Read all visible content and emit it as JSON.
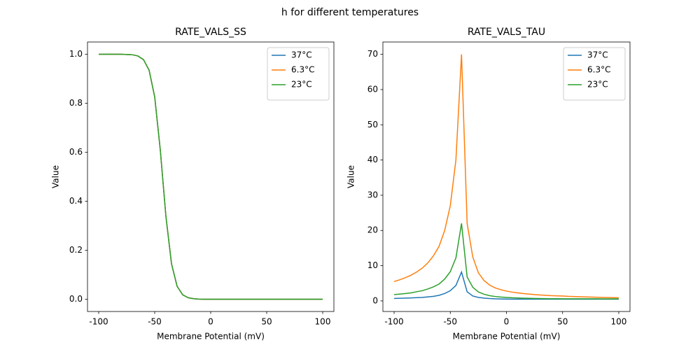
{
  "title": "h for different temperatures",
  "chart_data": [
    {
      "type": "line",
      "title": "RATE_VALS_SS",
      "xlabel": "Membrane Potential (mV)",
      "ylabel": "Value",
      "x": [
        -100,
        -95,
        -90,
        -85,
        -80,
        -75,
        -70,
        -65,
        -60,
        -55,
        -50,
        -45,
        -40,
        -35,
        -30,
        -25,
        -20,
        -15,
        -10,
        -5,
        0,
        5,
        10,
        15,
        20,
        25,
        30,
        35,
        40,
        45,
        50,
        55,
        60,
        65,
        70,
        75,
        80,
        85,
        90,
        95,
        100
      ],
      "series": [
        {
          "name": "37°C",
          "color": "#1f77b4",
          "values": [
            1,
            1,
            1,
            1,
            1,
            0.999,
            0.998,
            0.993,
            0.978,
            0.935,
            0.826,
            0.609,
            0.339,
            0.145,
            0.053,
            0.018,
            0.006,
            0.002,
            0.0003,
            0,
            0,
            0,
            0,
            0,
            0,
            0,
            0,
            0,
            0,
            0,
            0,
            0,
            0,
            0,
            0,
            0,
            0,
            0,
            0,
            0,
            0
          ]
        },
        {
          "name": "6.3°C",
          "color": "#ff7f0e",
          "values": [
            1,
            1,
            1,
            1,
            1,
            0.999,
            0.998,
            0.993,
            0.978,
            0.935,
            0.826,
            0.609,
            0.339,
            0.145,
            0.053,
            0.018,
            0.006,
            0.002,
            0.0003,
            0,
            0,
            0,
            0,
            0,
            0,
            0,
            0,
            0,
            0,
            0,
            0,
            0,
            0,
            0,
            0,
            0,
            0,
            0,
            0,
            0,
            0
          ]
        },
        {
          "name": "23°C",
          "color": "#2ca02c",
          "values": [
            1,
            1,
            1,
            1,
            1,
            0.999,
            0.998,
            0.993,
            0.978,
            0.935,
            0.826,
            0.609,
            0.339,
            0.145,
            0.053,
            0.018,
            0.006,
            0.002,
            0.0003,
            0,
            0,
            0,
            0,
            0,
            0,
            0,
            0,
            0,
            0,
            0,
            0,
            0,
            0,
            0,
            0,
            0,
            0,
            0,
            0,
            0,
            0
          ]
        }
      ],
      "xlim": [
        -110,
        110
      ],
      "xticks": [
        -100,
        -50,
        0,
        50,
        100
      ],
      "ylim": [
        -0.05,
        1.05
      ],
      "yticks": [
        {
          "value": 0,
          "label": "0.0"
        },
        0.2,
        0.4,
        0.6,
        0.8,
        {
          "value": 1,
          "label": "1.0"
        }
      ],
      "legend": "upper right"
    },
    {
      "type": "line",
      "title": "RATE_VALS_TAU",
      "xlabel": "Membrane Potential (mV)",
      "ylabel": "Value",
      "x": [
        -100,
        -95,
        -90,
        -85,
        -80,
        -75,
        -70,
        -65,
        -60,
        -55,
        -50,
        -45,
        -40,
        -35,
        -30,
        -25,
        -20,
        -15,
        -10,
        -5,
        0,
        5,
        10,
        15,
        20,
        25,
        30,
        35,
        40,
        45,
        50,
        55,
        60,
        65,
        70,
        75,
        80,
        85,
        90,
        95,
        100
      ],
      "series": [
        {
          "name": "37°C",
          "color": "#1f77b4",
          "values": [
            0.7,
            0.75,
            0.8,
            0.85,
            0.92,
            1.0,
            1.15,
            1.3,
            1.6,
            2.1,
            2.9,
            4.4,
            8.2,
            2.6,
            1.4,
            1.0,
            0.8,
            0.68,
            0.6,
            0.56,
            0.53,
            0.51,
            0.5,
            0.5,
            0.5,
            0.5,
            0.5,
            0.5,
            0.5,
            0.5,
            0.5,
            0.5,
            0.5,
            0.5,
            0.5,
            0.5,
            0.5,
            0.5,
            0.5,
            0.5,
            0.5
          ]
        },
        {
          "name": "6.3°C",
          "color": "#ff7f0e",
          "values": [
            5.5,
            6.0,
            6.6,
            7.3,
            8.2,
            9.3,
            10.8,
            12.8,
            15.5,
            20,
            27,
            40,
            70,
            22,
            12.5,
            8.0,
            5.8,
            4.5,
            3.7,
            3.2,
            2.8,
            2.5,
            2.3,
            2.1,
            1.95,
            1.8,
            1.7,
            1.6,
            1.5,
            1.45,
            1.4,
            1.3,
            1.25,
            1.2,
            1.15,
            1.1,
            1.05,
            1.0,
            0.97,
            0.93,
            0.9
          ]
        },
        {
          "name": "23°C",
          "color": "#2ca02c",
          "values": [
            1.8,
            1.95,
            2.1,
            2.3,
            2.6,
            2.9,
            3.4,
            4.0,
            4.8,
            6.2,
            8.3,
            12.2,
            22,
            6.8,
            3.9,
            2.55,
            1.9,
            1.5,
            1.26,
            1.1,
            1.0,
            0.9,
            0.84,
            0.78,
            0.74,
            0.7,
            0.67,
            0.65,
            0.63,
            0.62,
            0.61,
            0.6,
            0.6,
            0.6,
            0.59,
            0.59,
            0.59,
            0.58,
            0.58,
            0.58,
            0.58
          ]
        }
      ],
      "xlim": [
        -110,
        110
      ],
      "xticks": [
        -100,
        -50,
        0,
        50,
        100
      ],
      "ylim": [
        -3,
        73.5
      ],
      "yticks": [
        0,
        10,
        20,
        30,
        40,
        50,
        60,
        70
      ],
      "legend": "upper right"
    }
  ]
}
